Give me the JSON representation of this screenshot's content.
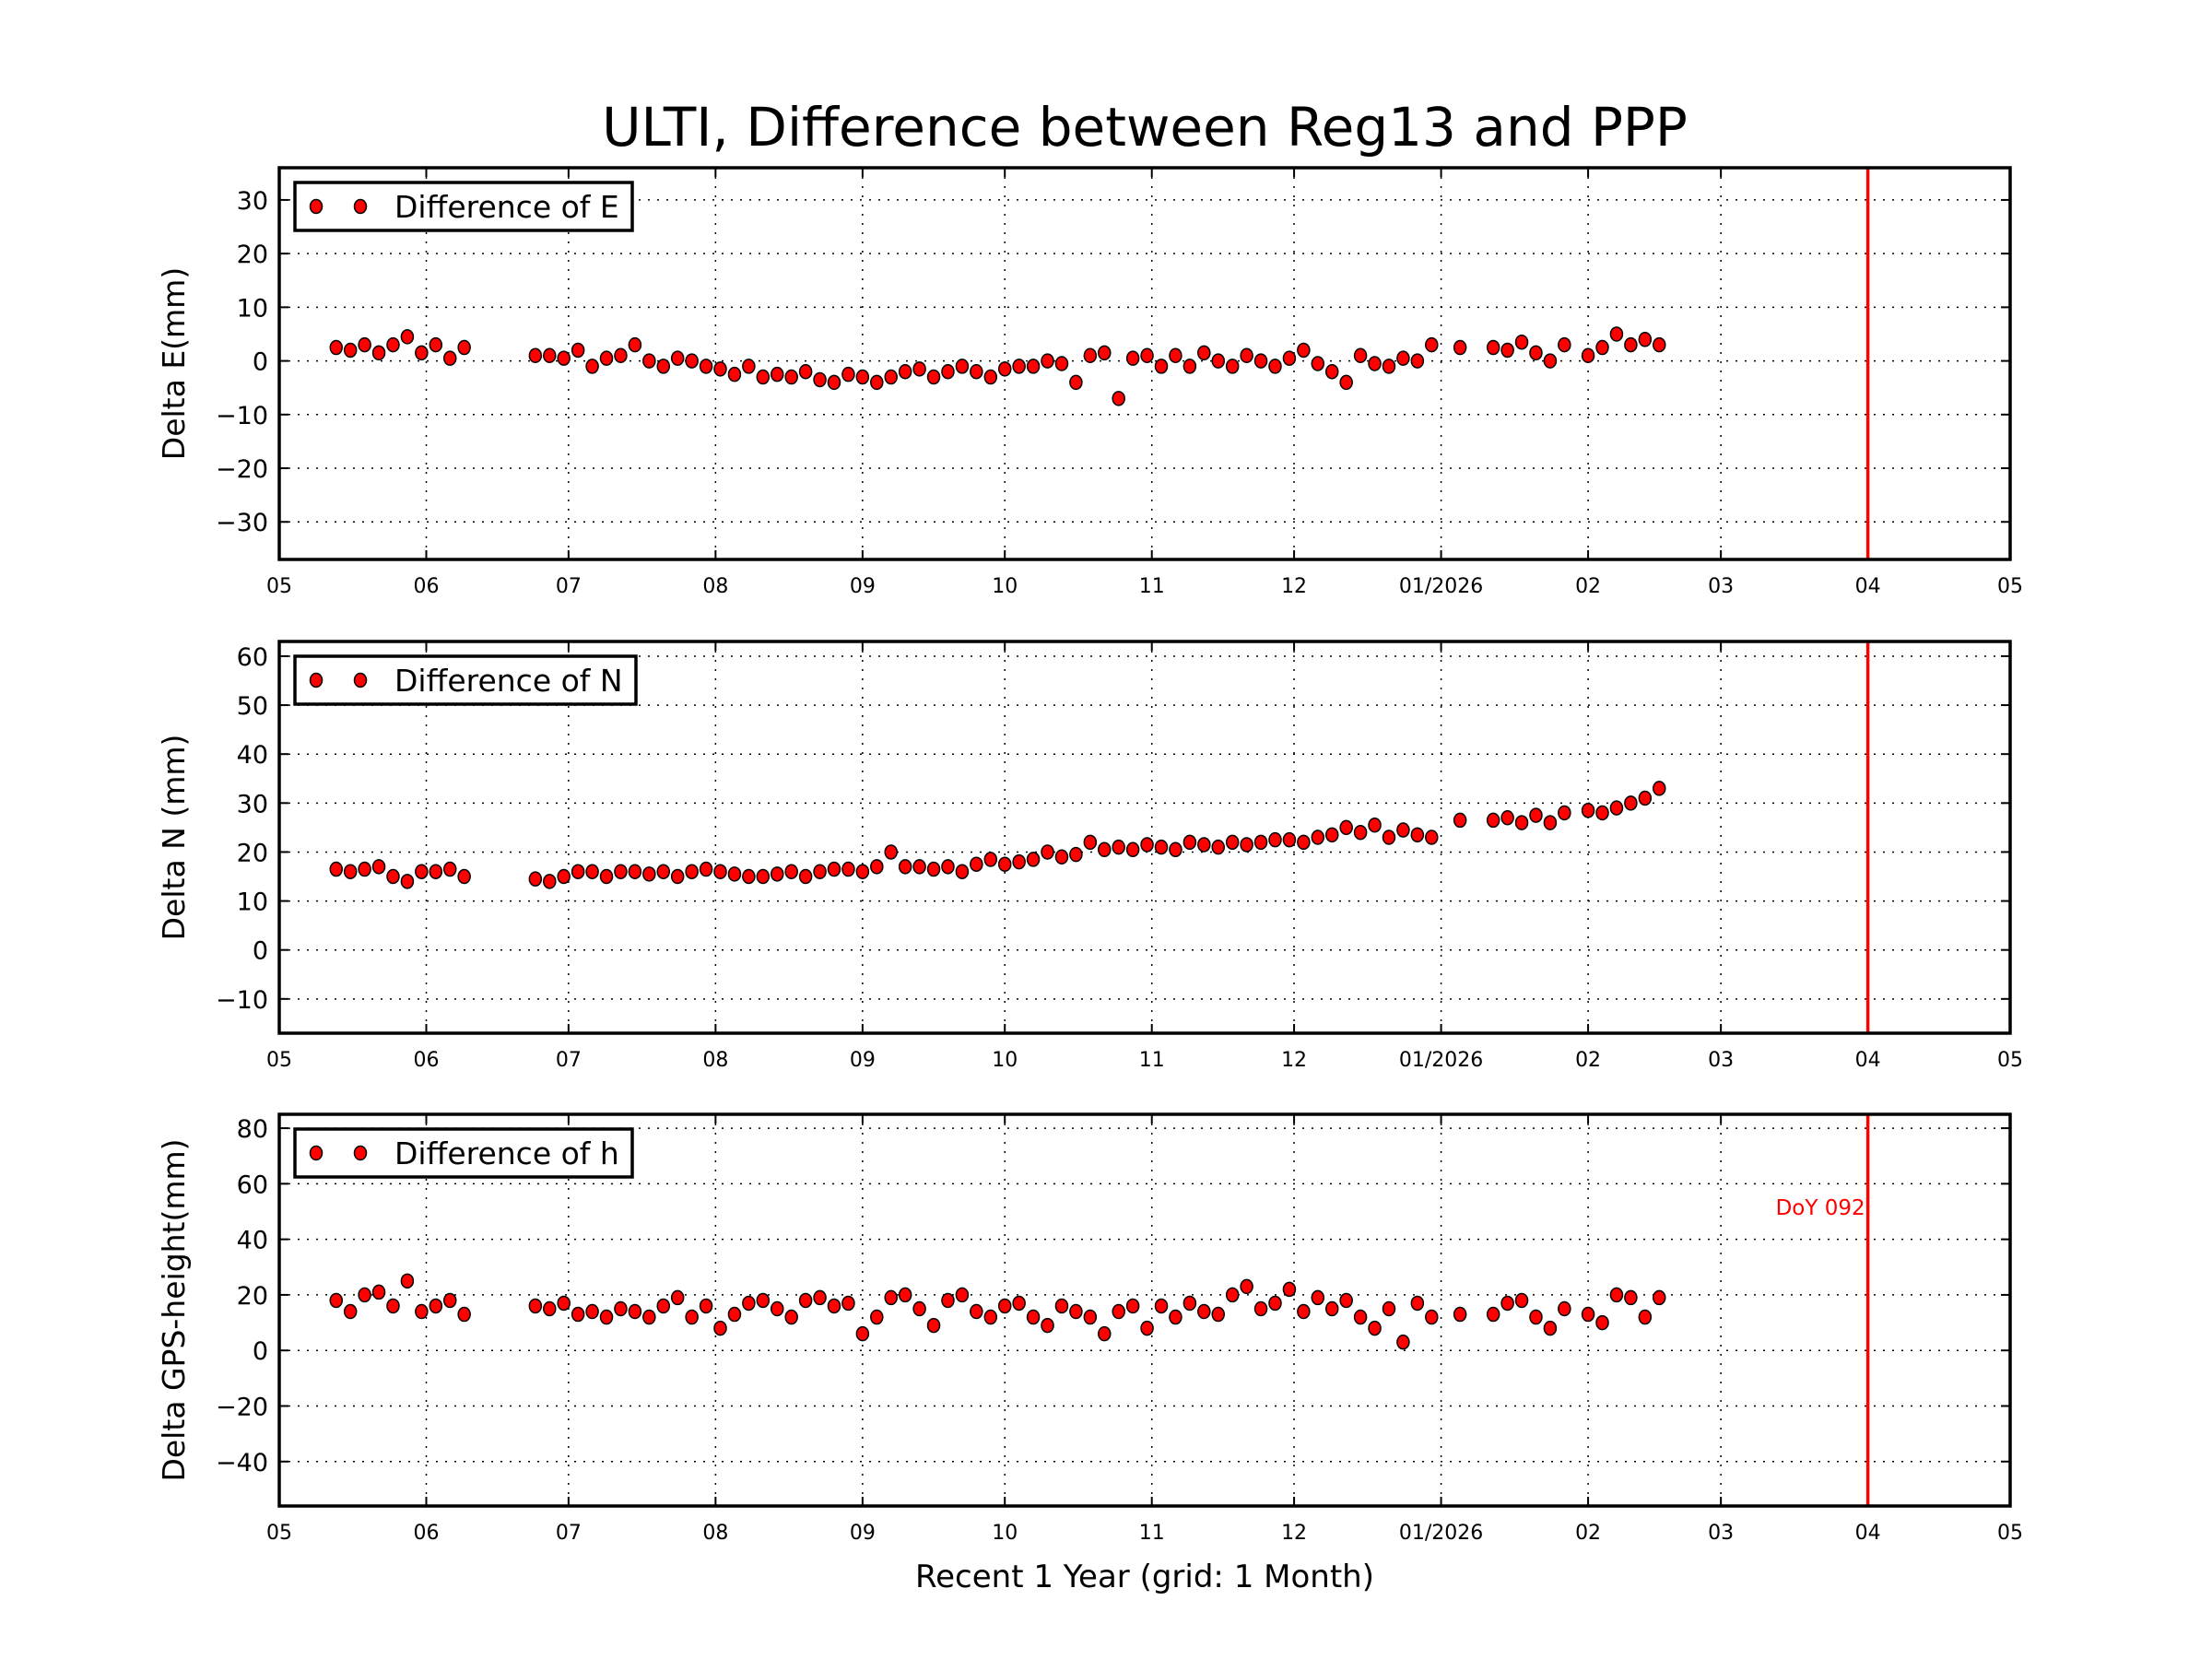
{
  "chart_data": {
    "type": "scatter",
    "title": "ULTI, Difference between Reg13 and PPP",
    "xlabel": "Recent 1 Year (grid: 1 Month)",
    "xlim": [
      "2025-05-01",
      "2026-05-01"
    ],
    "xticks": [
      "2025-05-01",
      "2025-06-01",
      "2025-07-01",
      "2025-08-01",
      "2025-09-01",
      "2025-10-01",
      "2025-11-01",
      "2025-12-01",
      "2026-01-01",
      "2026-02-01",
      "2026-03-01",
      "2026-04-01",
      "2026-05-01"
    ],
    "xtick_labels": [
      "05",
      "06",
      "07",
      "08",
      "09",
      "10",
      "11",
      "12",
      "01/2026",
      "02",
      "03",
      "04",
      "05"
    ],
    "grid": true,
    "legend_placement": "top-left",
    "marker_color": "#ff0000",
    "marker_line": {
      "date": "2026-04-01",
      "color": "#ff0000",
      "label": "DoY 092"
    },
    "x": [
      "2025-05-13",
      "2025-05-16",
      "2025-05-19",
      "2025-05-22",
      "2025-05-25",
      "2025-05-28",
      "2025-05-31",
      "2025-06-03",
      "2025-06-06",
      "2025-06-09",
      "2025-06-24",
      "2025-06-27",
      "2025-06-30",
      "2025-07-03",
      "2025-07-06",
      "2025-07-09",
      "2025-07-12",
      "2025-07-15",
      "2025-07-18",
      "2025-07-21",
      "2025-07-24",
      "2025-07-27",
      "2025-07-30",
      "2025-08-02",
      "2025-08-05",
      "2025-08-08",
      "2025-08-11",
      "2025-08-14",
      "2025-08-17",
      "2025-08-20",
      "2025-08-23",
      "2025-08-26",
      "2025-08-29",
      "2025-09-01",
      "2025-09-04",
      "2025-09-07",
      "2025-09-10",
      "2025-09-13",
      "2025-09-16",
      "2025-09-19",
      "2025-09-22",
      "2025-09-25",
      "2025-09-28",
      "2025-10-01",
      "2025-10-04",
      "2025-10-07",
      "2025-10-10",
      "2025-10-13",
      "2025-10-16",
      "2025-10-19",
      "2025-10-22",
      "2025-10-25",
      "2025-10-28",
      "2025-10-31",
      "2025-11-03",
      "2025-11-06",
      "2025-11-09",
      "2025-11-12",
      "2025-11-15",
      "2025-11-18",
      "2025-11-21",
      "2025-11-24",
      "2025-11-27",
      "2025-11-30",
      "2025-12-03",
      "2025-12-06",
      "2025-12-09",
      "2025-12-12",
      "2025-12-15",
      "2025-12-18",
      "2025-12-21",
      "2025-12-24",
      "2025-12-27",
      "2025-12-30",
      "2026-01-05",
      "2026-01-12",
      "2026-01-15",
      "2026-01-18",
      "2026-01-21",
      "2026-01-24",
      "2026-01-27",
      "2026-02-01",
      "2026-02-04",
      "2026-02-07",
      "2026-02-10",
      "2026-02-13",
      "2026-02-16"
    ],
    "panels": [
      {
        "ylabel": "Delta E(mm)",
        "ylim": [
          -37,
          36
        ],
        "yticks": [
          -30,
          -20,
          -10,
          0,
          10,
          20,
          30
        ],
        "ytick_labels": [
          "−30",
          "−20",
          "−10",
          "0",
          "10",
          "20",
          "30"
        ],
        "series": [
          {
            "name": "Difference of E",
            "values": [
              2.5,
              2,
              3,
              1.5,
              3,
              4.5,
              1.5,
              3,
              0.5,
              2.5,
              1,
              1,
              0.5,
              2,
              -1,
              0.5,
              1,
              3,
              0,
              -1,
              0.5,
              0,
              -1,
              -1.5,
              -2.5,
              -1,
              -3,
              -2.5,
              -3,
              -2,
              -3.5,
              -4,
              -2.5,
              -3,
              -4,
              -3,
              -2,
              -1.5,
              -3,
              -2,
              -1,
              -2,
              -3,
              -1.5,
              -1,
              -1,
              0,
              -0.5,
              -4,
              1,
              1.5,
              -7,
              0.5,
              1,
              -1,
              1,
              -1,
              1.5,
              0,
              -1,
              1,
              0,
              -1,
              0.5,
              2,
              -0.5,
              -2,
              -4,
              1,
              -0.5,
              -1,
              0.5,
              0,
              3,
              2.5,
              2.5,
              2,
              3.5,
              1.5,
              0,
              3,
              1,
              2.5,
              5,
              3,
              4,
              3
            ]
          }
        ]
      },
      {
        "ylabel": "Delta N (mm)",
        "ylim": [
          -17,
          63
        ],
        "yticks": [
          -10,
          0,
          10,
          20,
          30,
          40,
          50,
          60
        ],
        "ytick_labels": [
          "−10",
          "0",
          "10",
          "20",
          "30",
          "40",
          "50",
          "60"
        ],
        "series": [
          {
            "name": "Difference of N",
            "values": [
              16.5,
              16,
              16.5,
              17,
              15,
              14,
              16,
              16,
              16.5,
              15,
              14.5,
              14,
              15,
              16,
              16,
              15,
              16,
              16,
              15.5,
              16,
              15,
              16,
              16.5,
              16,
              15.5,
              15,
              15,
              15.5,
              16,
              15,
              16,
              16.5,
              16.5,
              16,
              17,
              20,
              17,
              17,
              16.5,
              17,
              16,
              17.5,
              18.5,
              17.5,
              18,
              18.5,
              20,
              19,
              19.5,
              22,
              20.5,
              21,
              20.5,
              21.5,
              21,
              20.5,
              22,
              21.5,
              21,
              22,
              21.5,
              22,
              22.5,
              22.5,
              22,
              23,
              23.5,
              25,
              24,
              25.5,
              23,
              24.5,
              23.5,
              23,
              26.5,
              26.5,
              27,
              26,
              27.5,
              26,
              28,
              28.5,
              28,
              29,
              30,
              31,
              33
            ]
          }
        ]
      },
      {
        "ylabel": "Delta GPS-height(mm)",
        "ylim": [
          -56,
          85
        ],
        "yticks": [
          -40,
          -20,
          0,
          20,
          40,
          60,
          80
        ],
        "ytick_labels": [
          "−40",
          "−20",
          "0",
          "20",
          "40",
          "60",
          "80"
        ],
        "series": [
          {
            "name": "Difference of h",
            "values": [
              18,
              14,
              20,
              21,
              16,
              25,
              14,
              16,
              18,
              13,
              16,
              15,
              17,
              13,
              14,
              12,
              15,
              14,
              12,
              16,
              19,
              12,
              16,
              8,
              13,
              17,
              18,
              15,
              12,
              18,
              19,
              16,
              17,
              6,
              12,
              19,
              20,
              15,
              9,
              18,
              20,
              14,
              12,
              16,
              17,
              12,
              9,
              16,
              14,
              12,
              6,
              14,
              16,
              8,
              16,
              12,
              17,
              14,
              13,
              20,
              23,
              15,
              17,
              22,
              14,
              19,
              15,
              18,
              12,
              8,
              15,
              3,
              17,
              12,
              13,
              13,
              17,
              18,
              12,
              8,
              15,
              13,
              10,
              20,
              19,
              12,
              19
            ]
          }
        ]
      }
    ]
  }
}
